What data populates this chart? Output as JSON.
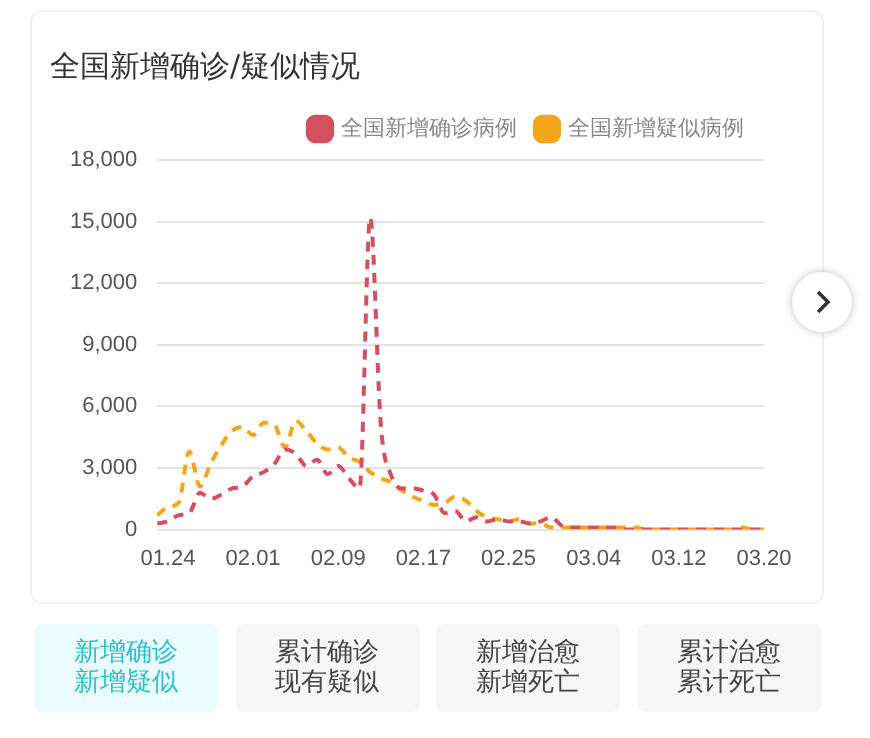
{
  "chart_data": {
    "type": "line",
    "title": "全国新增确诊/疑似情况",
    "categories": [
      null,
      "01.24",
      null,
      null,
      null,
      null,
      null,
      null,
      null,
      "02.01",
      null,
      null,
      null,
      null,
      null,
      null,
      null,
      "02.09",
      null,
      null,
      null,
      null,
      null,
      null,
      null,
      "02.17",
      null,
      null,
      null,
      null,
      null,
      null,
      null,
      "02.25",
      null,
      null,
      null,
      null,
      null,
      null,
      null,
      "03.04",
      null,
      null,
      null,
      null,
      null,
      null,
      null,
      "03.12",
      null,
      null,
      null,
      null,
      null,
      null,
      null,
      "03.20"
    ],
    "series": [
      {
        "name": "全国新增确诊病例",
        "color": "#d4505c",
        "values": [
          300,
          400,
          700,
          800,
          1800,
          1500,
          1700,
          2000,
          2100,
          2600,
          2800,
          3200,
          3900,
          3700,
          3100,
          3400,
          2700,
          3100,
          2500,
          2000,
          15200,
          5100,
          2600,
          2000,
          2000,
          1900,
          1700,
          800,
          900,
          400,
          600,
          400,
          500,
          400,
          400,
          300,
          400,
          600,
          200,
          100,
          100,
          100,
          100,
          100,
          0,
          0,
          0,
          0,
          0,
          0,
          0,
          0,
          0,
          0,
          0,
          0,
          0,
          0
        ]
      },
      {
        "name": "全国新增疑似病例",
        "color": "#f5a51c",
        "values": [
          700,
          1100,
          1300,
          3800,
          2100,
          3200,
          4100,
          4800,
          5000,
          4600,
          5200,
          5100,
          4000,
          5300,
          4800,
          4200,
          3900,
          4000,
          3500,
          3300,
          2800,
          2500,
          2300,
          1900,
          1600,
          1400,
          1200,
          1300,
          1600,
          1400,
          900,
          600,
          500,
          400,
          500,
          300,
          300,
          100,
          100,
          100,
          100,
          100,
          100,
          100,
          100,
          100,
          0,
          0,
          0,
          0,
          0,
          0,
          0,
          0,
          0,
          100,
          0,
          0
        ]
      }
    ],
    "ylim": [
      0,
      18000
    ],
    "yticks": [
      0,
      {
        "value": 3000,
        "label": "3,000"
      },
      {
        "value": 6000,
        "label": "6,000"
      },
      {
        "value": 9000,
        "label": "9,000"
      },
      {
        "value": 12000,
        "label": "12,000"
      },
      {
        "value": 15000,
        "label": "15,000"
      },
      {
        "value": 18000,
        "label": "18,000"
      }
    ],
    "grid": "y",
    "legend": "top right",
    "marker": "none",
    "line_style": "dashed",
    "annotations": [
      "新增确诊新增疑似",
      "累计确诊现有疑似",
      "新增治愈新增死亡",
      "累计治愈累计死亡"
    ]
  }
}
